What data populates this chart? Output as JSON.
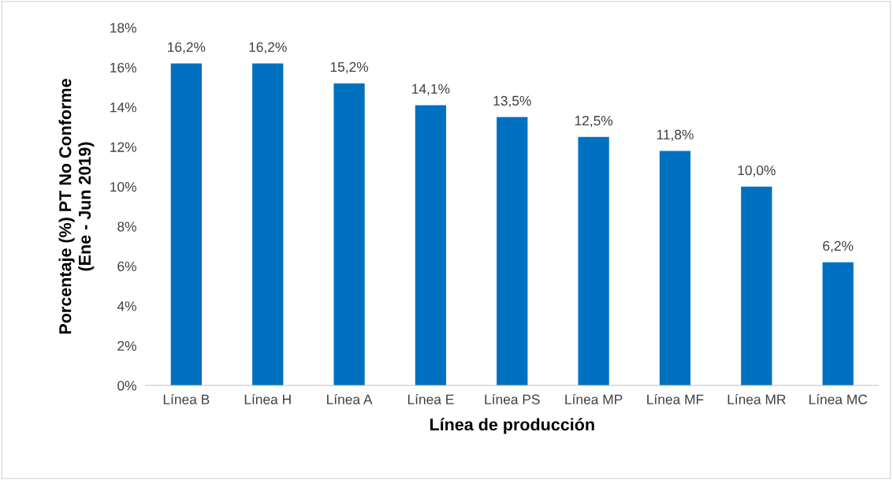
{
  "chart_data": {
    "type": "bar",
    "xlabel": "Línea de producción",
    "ylabel": "Porcentaje (%) PT No Conforme\n(Ene - Jun 2019)",
    "categories": [
      "Línea B",
      "Línea H",
      "Línea A",
      "Línea E",
      "Línea PS",
      "Línea MP",
      "Línea MF",
      "Línea MR",
      "Línea MC"
    ],
    "values": [
      16.2,
      16.2,
      15.2,
      14.1,
      13.5,
      12.5,
      11.8,
      10.0,
      6.2
    ],
    "value_labels": [
      "16,2%",
      "16,2%",
      "15,2%",
      "14,1%",
      "13,5%",
      "12,5%",
      "11,8%",
      "10,0%",
      "6,2%"
    ],
    "color": "#0070c0",
    "ylim": [
      0,
      18
    ],
    "yticks": [
      {
        "value": 0,
        "label": "0%"
      },
      {
        "value": 2,
        "label": "2%"
      },
      {
        "value": 4,
        "label": "4%"
      },
      {
        "value": 6,
        "label": "6%"
      },
      {
        "value": 8,
        "label": "8%"
      },
      {
        "value": 10,
        "label": "10%"
      },
      {
        "value": 12,
        "label": "12%"
      },
      {
        "value": 14,
        "label": "14%"
      },
      {
        "value": 16,
        "label": "16%"
      },
      {
        "value": 18,
        "label": "18%"
      }
    ],
    "grid": false,
    "legend": false
  }
}
